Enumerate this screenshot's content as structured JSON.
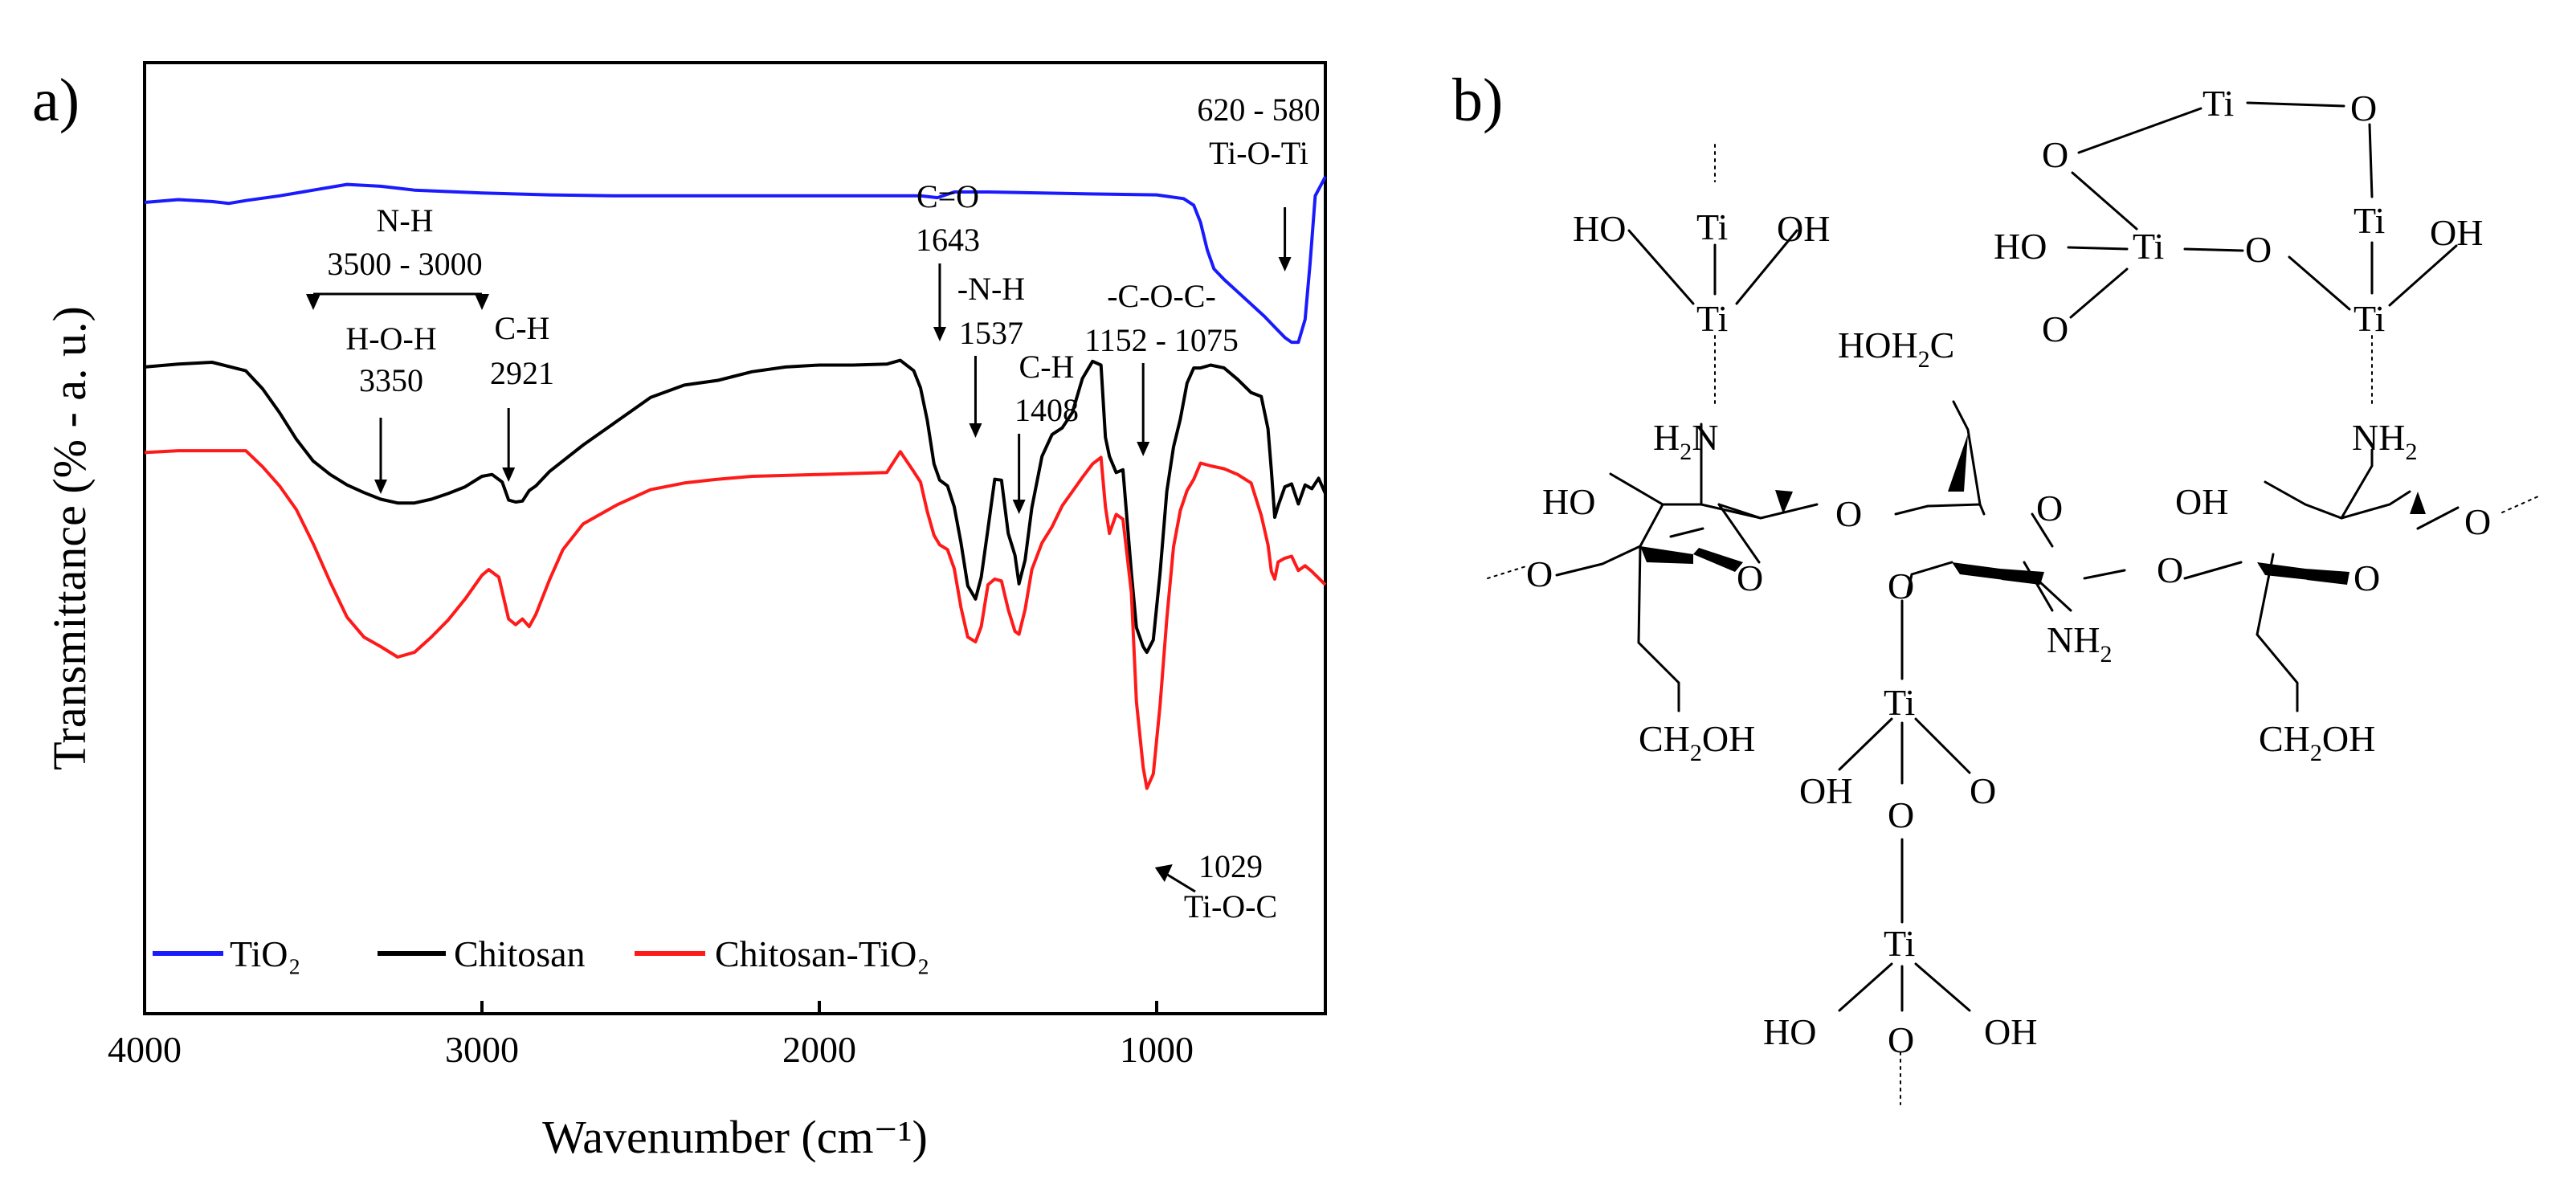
{
  "figure": {
    "panel_a_label": "a)",
    "panel_b_label": "b)"
  },
  "chart_data": {
    "type": "line",
    "title": "",
    "xlabel": "Wavenumber (cm⁻¹)",
    "ylabel": "Transmittance (% - a. u.)",
    "xlim": [
      4000,
      500
    ],
    "ylim": [
      0,
      100
    ],
    "x_reversed": true,
    "x_ticks": [
      4000,
      3000,
      2000,
      1000
    ],
    "x_tick_labels": [
      "4000",
      "3000",
      "2000",
      "1000"
    ],
    "legend_position": "bottom-left",
    "legend": [
      "TiO₂",
      "Chitosan",
      "Chitosan-TiO₂"
    ],
    "series": [
      {
        "name": "TiO₂",
        "color": "#1a1aff",
        "points": [
          [
            4000,
            85.3
          ],
          [
            3900,
            85.6
          ],
          [
            3800,
            85.4
          ],
          [
            3750,
            85.2
          ],
          [
            3700,
            85.5
          ],
          [
            3600,
            86
          ],
          [
            3500,
            86.6
          ],
          [
            3400,
            87.2
          ],
          [
            3300,
            87
          ],
          [
            3200,
            86.6
          ],
          [
            3000,
            86.3
          ],
          [
            2800,
            86.1
          ],
          [
            2600,
            86
          ],
          [
            2400,
            86
          ],
          [
            2200,
            86
          ],
          [
            2000,
            86
          ],
          [
            1800,
            86
          ],
          [
            1700,
            86
          ],
          [
            1650,
            85.8
          ],
          [
            1600,
            86.4
          ],
          [
            1500,
            86.4
          ],
          [
            1200,
            86.2
          ],
          [
            1000,
            86.1
          ],
          [
            920,
            85.7
          ],
          [
            890,
            85
          ],
          [
            870,
            83.2
          ],
          [
            850,
            80.3
          ],
          [
            830,
            78.3
          ],
          [
            800,
            77.2
          ],
          [
            760,
            75.9
          ],
          [
            720,
            74.6
          ],
          [
            680,
            73.3
          ],
          [
            650,
            72.2
          ],
          [
            620,
            71.1
          ],
          [
            600,
            70.6
          ],
          [
            580,
            70.6
          ],
          [
            560,
            73
          ],
          [
            545,
            79
          ],
          [
            530,
            86
          ],
          [
            500,
            88
          ]
        ]
      },
      {
        "name": "Chitosan",
        "color": "#000000",
        "points": [
          [
            4000,
            68
          ],
          [
            3900,
            68.3
          ],
          [
            3800,
            68.5
          ],
          [
            3700,
            67.6
          ],
          [
            3650,
            65.7
          ],
          [
            3600,
            63.2
          ],
          [
            3550,
            60.4
          ],
          [
            3500,
            58.1
          ],
          [
            3450,
            56.7
          ],
          [
            3400,
            55.6
          ],
          [
            3350,
            54.8
          ],
          [
            3300,
            54.1
          ],
          [
            3250,
            53.7
          ],
          [
            3200,
            53.7
          ],
          [
            3150,
            54.1
          ],
          [
            3100,
            54.7
          ],
          [
            3050,
            55.4
          ],
          [
            3000,
            56.5
          ],
          [
            2970,
            56.7
          ],
          [
            2940,
            55.9
          ],
          [
            2921,
            54
          ],
          [
            2900,
            53.8
          ],
          [
            2880,
            53.9
          ],
          [
            2860,
            55
          ],
          [
            2840,
            55.5
          ],
          [
            2800,
            57
          ],
          [
            2700,
            59.8
          ],
          [
            2600,
            62.3
          ],
          [
            2500,
            64.8
          ],
          [
            2400,
            66.1
          ],
          [
            2300,
            66.6
          ],
          [
            2200,
            67.5
          ],
          [
            2100,
            68
          ],
          [
            2000,
            68.2
          ],
          [
            1900,
            68.2
          ],
          [
            1800,
            68.3
          ],
          [
            1760,
            68.7
          ],
          [
            1720,
            67.6
          ],
          [
            1700,
            65.8
          ],
          [
            1680,
            62.4
          ],
          [
            1660,
            57.8
          ],
          [
            1643,
            56.1
          ],
          [
            1620,
            55.5
          ],
          [
            1600,
            53.3
          ],
          [
            1580,
            49.5
          ],
          [
            1560,
            45
          ],
          [
            1537,
            43.6
          ],
          [
            1520,
            45.9
          ],
          [
            1500,
            51
          ],
          [
            1480,
            56.2
          ],
          [
            1460,
            56.1
          ],
          [
            1440,
            50.5
          ],
          [
            1420,
            48.2
          ],
          [
            1408,
            45.2
          ],
          [
            1390,
            47.7
          ],
          [
            1370,
            53.2
          ],
          [
            1340,
            58.6
          ],
          [
            1310,
            60.9
          ],
          [
            1280,
            61.6
          ],
          [
            1250,
            63.2
          ],
          [
            1220,
            66.8
          ],
          [
            1190,
            68.6
          ],
          [
            1165,
            68.2
          ],
          [
            1152,
            60.6
          ],
          [
            1140,
            58.6
          ],
          [
            1120,
            56.9
          ],
          [
            1100,
            57.2
          ],
          [
            1075,
            46.4
          ],
          [
            1060,
            40.6
          ],
          [
            1040,
            38.6
          ],
          [
            1029,
            38
          ],
          [
            1010,
            39.3
          ],
          [
            990,
            46.3
          ],
          [
            970,
            54.9
          ],
          [
            950,
            59.6
          ],
          [
            930,
            62.5
          ],
          [
            910,
            66.3
          ],
          [
            890,
            67.9
          ],
          [
            870,
            67.9
          ],
          [
            840,
            68.2
          ],
          [
            800,
            67.9
          ],
          [
            760,
            66.7
          ],
          [
            720,
            65.3
          ],
          [
            690,
            64.9
          ],
          [
            670,
            61.5
          ],
          [
            660,
            57.1
          ],
          [
            650,
            52.2
          ],
          [
            640,
            53.4
          ],
          [
            620,
            55.4
          ],
          [
            600,
            55.7
          ],
          [
            580,
            53.6
          ],
          [
            560,
            55.6
          ],
          [
            540,
            55.2
          ],
          [
            520,
            56.3
          ],
          [
            500,
            54.7
          ]
        ]
      },
      {
        "name": "Chitosan-TiO₂",
        "color": "#ff1a1a",
        "points": [
          [
            4000,
            59
          ],
          [
            3900,
            59.2
          ],
          [
            3800,
            59.2
          ],
          [
            3700,
            59.2
          ],
          [
            3650,
            57.5
          ],
          [
            3600,
            55.5
          ],
          [
            3550,
            53
          ],
          [
            3500,
            49.4
          ],
          [
            3450,
            45.4
          ],
          [
            3400,
            41.7
          ],
          [
            3350,
            39.6
          ],
          [
            3300,
            38.6
          ],
          [
            3250,
            37.5
          ],
          [
            3200,
            38
          ],
          [
            3150,
            39.6
          ],
          [
            3100,
            41.4
          ],
          [
            3050,
            43.6
          ],
          [
            3000,
            46.1
          ],
          [
            2980,
            46.7
          ],
          [
            2950,
            45.9
          ],
          [
            2921,
            41.5
          ],
          [
            2900,
            40.9
          ],
          [
            2880,
            41.5
          ],
          [
            2860,
            40.7
          ],
          [
            2840,
            42
          ],
          [
            2800,
            45.6
          ],
          [
            2760,
            48.8
          ],
          [
            2700,
            51.5
          ],
          [
            2600,
            53.5
          ],
          [
            2500,
            55.1
          ],
          [
            2400,
            55.8
          ],
          [
            2300,
            56.2
          ],
          [
            2200,
            56.5
          ],
          [
            2100,
            56.6
          ],
          [
            2000,
            56.7
          ],
          [
            1900,
            56.8
          ],
          [
            1800,
            56.9
          ],
          [
            1760,
            59.1
          ],
          [
            1720,
            57
          ],
          [
            1700,
            55.9
          ],
          [
            1680,
            52.8
          ],
          [
            1660,
            50.3
          ],
          [
            1643,
            49.3
          ],
          [
            1620,
            48.8
          ],
          [
            1600,
            46.8
          ],
          [
            1580,
            42.7
          ],
          [
            1560,
            39.6
          ],
          [
            1537,
            39.1
          ],
          [
            1520,
            40.7
          ],
          [
            1500,
            45.1
          ],
          [
            1480,
            45.7
          ],
          [
            1460,
            45.5
          ],
          [
            1440,
            42.5
          ],
          [
            1420,
            40.2
          ],
          [
            1408,
            39.9
          ],
          [
            1390,
            42.5
          ],
          [
            1370,
            46.7
          ],
          [
            1340,
            49.5
          ],
          [
            1310,
            51.2
          ],
          [
            1280,
            53.4
          ],
          [
            1250,
            54.9
          ],
          [
            1220,
            56.4
          ],
          [
            1190,
            57.8
          ],
          [
            1165,
            58.5
          ],
          [
            1152,
            53.3
          ],
          [
            1140,
            50.5
          ],
          [
            1120,
            52.5
          ],
          [
            1100,
            52
          ],
          [
            1075,
            44.3
          ],
          [
            1060,
            32.8
          ],
          [
            1040,
            25.9
          ],
          [
            1029,
            23.7
          ],
          [
            1010,
            25.2
          ],
          [
            990,
            32.4
          ],
          [
            970,
            41.5
          ],
          [
            950,
            49.1
          ],
          [
            930,
            52.9
          ],
          [
            910,
            55
          ],
          [
            890,
            56.2
          ],
          [
            870,
            57.9
          ],
          [
            840,
            57.6
          ],
          [
            800,
            57.3
          ],
          [
            760,
            56.7
          ],
          [
            720,
            55.8
          ],
          [
            690,
            52.4
          ],
          [
            670,
            49.3
          ],
          [
            660,
            46.5
          ],
          [
            650,
            45.7
          ],
          [
            640,
            47.5
          ],
          [
            620,
            47.9
          ],
          [
            600,
            48.1
          ],
          [
            580,
            46.6
          ],
          [
            560,
            47.1
          ],
          [
            540,
            46.5
          ],
          [
            520,
            45.8
          ],
          [
            500,
            45.1
          ]
        ]
      }
    ],
    "annotations": [
      {
        "id": "tioti_range",
        "text": "620 - 580",
        "arrow_x": 620
      },
      {
        "id": "tioti_name",
        "text": "Ti-O-Ti"
      },
      {
        "id": "nh_name",
        "text": "N-H"
      },
      {
        "id": "nh_range",
        "text": "3500 - 3000",
        "bracket": [
          3500,
          3000
        ]
      },
      {
        "id": "hoh_name",
        "text": "H-O-H"
      },
      {
        "id": "hoh_val",
        "text": "3350",
        "arrow_x": 3300
      },
      {
        "id": "ch1_name",
        "text": "C-H"
      },
      {
        "id": "ch1_val",
        "text": "2921",
        "arrow_x": 2921
      },
      {
        "id": "co_name",
        "text": "C=O"
      },
      {
        "id": "co_val",
        "text": "1643",
        "arrow_x": 1643
      },
      {
        "id": "nh2_name",
        "text": "-N-H"
      },
      {
        "id": "nh2_val",
        "text": "1537",
        "arrow_x": 1537
      },
      {
        "id": "ch2_name",
        "text": "C-H"
      },
      {
        "id": "ch2_val",
        "text": "1408",
        "arrow_x": 1408
      },
      {
        "id": "coc_name",
        "text": "-C-O-C-"
      },
      {
        "id": "coc_range",
        "text": "1152 - 1075",
        "arrow_x": 1040
      },
      {
        "id": "tioc_val",
        "text": "1029",
        "arrow_x": 1029
      },
      {
        "id": "tioc_name",
        "text": "Ti-O-C"
      }
    ]
  },
  "structure": {
    "atoms": {
      "Ti": "Ti",
      "O": "O",
      "OH": "OH",
      "HO": "HO",
      "H": "H",
      "N": "N",
      "C": "C",
      "sub2": "2",
      "HOH2C_pre": "HOH",
      "HOH2C_post": "C",
      "CH2OH_pre": "CH",
      "CH2OH_post": "OH",
      "NH2_pre": "NH"
    }
  }
}
